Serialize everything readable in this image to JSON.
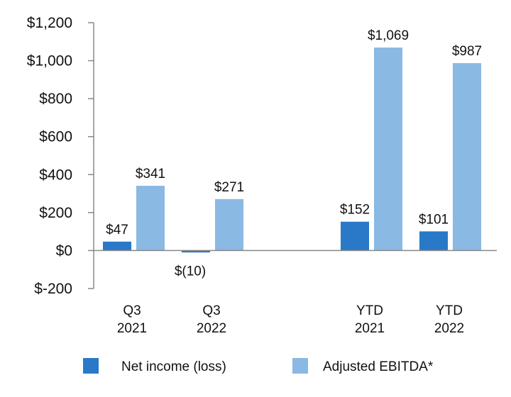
{
  "chart_data": {
    "type": "bar",
    "title": "",
    "xlabel": "",
    "ylabel": "",
    "ylim": [
      -200,
      1200
    ],
    "yticks": [
      -200,
      0,
      200,
      400,
      600,
      800,
      1000,
      1200
    ],
    "ytick_labels": [
      "$-200",
      "$0",
      "$200",
      "$400",
      "$600",
      "$800",
      "$1,000",
      "$1,200"
    ],
    "categories": [
      {
        "line1": "Q3",
        "line2": "2021"
      },
      {
        "line1": "Q3",
        "line2": "2022"
      },
      {
        "line1": "YTD",
        "line2": "2021"
      },
      {
        "line1": "YTD",
        "line2": "2022"
      }
    ],
    "series": [
      {
        "name": "Net income (loss)",
        "color": "#2a78c8",
        "values": [
          47,
          -10,
          152,
          101
        ],
        "labels": [
          "$47",
          "$(10)",
          "$152",
          "$101"
        ]
      },
      {
        "name": "Adjusted EBITDA*",
        "color": "#8ab9e3",
        "values": [
          341,
          271,
          1069,
          987
        ],
        "labels": [
          "$341",
          "$271",
          "$1,069",
          "$987"
        ]
      }
    ],
    "legend_position": "bottom",
    "grid": false
  }
}
